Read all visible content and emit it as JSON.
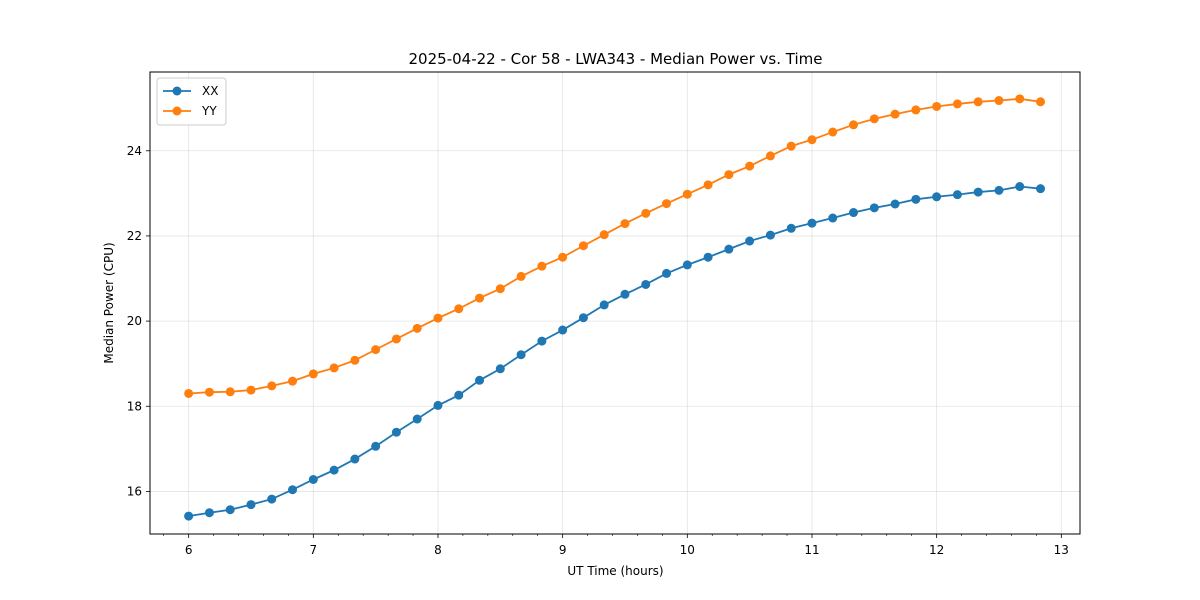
{
  "chart_data": {
    "type": "line",
    "title": "2025-04-22 - Cor 58 - LWA343 - Median Power vs. Time",
    "xlabel": "UT Time (hours)",
    "ylabel": "Median Power (CPU)",
    "xlim": [
      5.69,
      13.15
    ],
    "ylim": [
      15.0,
      25.85
    ],
    "xticks": [
      6,
      7,
      8,
      9,
      10,
      11,
      12,
      13
    ],
    "yticks": [
      16,
      18,
      20,
      22,
      24
    ],
    "grid": true,
    "legend_position": "top-left",
    "x": [
      6.0,
      6.1667,
      6.3333,
      6.5,
      6.6667,
      6.8333,
      7.0,
      7.1667,
      7.3333,
      7.5,
      7.6667,
      7.8333,
      8.0,
      8.1667,
      8.3333,
      8.5,
      8.6667,
      8.8333,
      9.0,
      9.1667,
      9.3333,
      9.5,
      9.6667,
      9.8333,
      10.0,
      10.1667,
      10.3333,
      10.5,
      10.6667,
      10.8333,
      11.0,
      11.1667,
      11.3333,
      11.5,
      11.6667,
      11.8333,
      12.0,
      12.1667,
      12.3333,
      12.5,
      12.6667,
      12.8333
    ],
    "series": [
      {
        "name": "XX",
        "color": "#1f77b4",
        "values": [
          15.42,
          15.5,
          15.57,
          15.69,
          15.82,
          16.04,
          16.28,
          16.5,
          16.76,
          17.06,
          17.39,
          17.7,
          18.02,
          18.26,
          18.61,
          18.88,
          19.21,
          19.53,
          19.79,
          20.08,
          20.38,
          20.63,
          20.86,
          21.12,
          21.32,
          21.5,
          21.69,
          21.88,
          22.02,
          22.18,
          22.3,
          22.42,
          22.55,
          22.66,
          22.75,
          22.86,
          22.92,
          22.97,
          23.03,
          23.07,
          23.16,
          23.11
        ]
      },
      {
        "name": "YY",
        "color": "#ff7f0e",
        "values": [
          18.3,
          18.33,
          18.34,
          18.38,
          18.48,
          18.59,
          18.76,
          18.9,
          19.08,
          19.33,
          19.58,
          19.83,
          20.07,
          20.29,
          20.54,
          20.76,
          21.05,
          21.29,
          21.5,
          21.77,
          22.03,
          22.29,
          22.53,
          22.76,
          22.98,
          23.2,
          23.44,
          23.64,
          23.88,
          24.11,
          24.26,
          24.44,
          24.61,
          24.75,
          24.86,
          24.96,
          25.04,
          25.1,
          25.15,
          25.18,
          25.22,
          25.15
        ]
      }
    ]
  }
}
